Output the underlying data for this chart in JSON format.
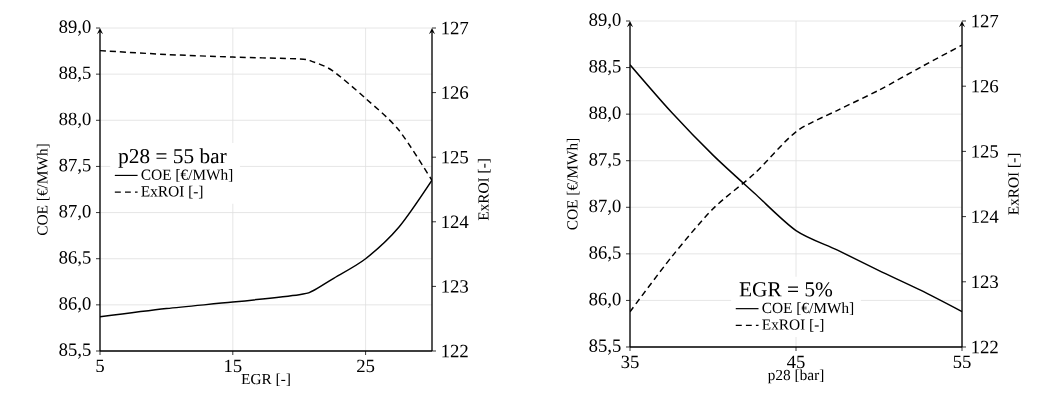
{
  "chart_data": [
    {
      "type": "line",
      "xlabel": "EGR [-]",
      "ylabel": "COE [€/MWh]",
      "y2label": "ExROI [-]",
      "legend_title": "p28 = 55 bar",
      "legend": "left",
      "grid": true,
      "marker": "none",
      "x": [
        5,
        10,
        15,
        20,
        21,
        22.5,
        25,
        27.5,
        30
      ],
      "xlim": [
        5,
        30
      ],
      "xticks": [
        5,
        15,
        25
      ],
      "ylim": [
        85.5,
        89
      ],
      "yticks": [
        {
          "value": 85.5,
          "label": "85,5"
        },
        {
          "value": 86,
          "label": "86,0"
        },
        {
          "value": 86.5,
          "label": "86,5"
        },
        {
          "value": 87,
          "label": "87,0"
        },
        {
          "value": 87.5,
          "label": "87,5"
        },
        {
          "value": 88,
          "label": "88,0"
        },
        {
          "value": 88.5,
          "label": "88,5"
        },
        {
          "value": 89,
          "label": "89,0"
        }
      ],
      "y2lim": [
        122,
        127
      ],
      "y2ticks": [
        122,
        123,
        124,
        125,
        126,
        127
      ],
      "series": [
        {
          "name": "COE [€/MWh]",
          "color": "#000000",
          "line_style": "solid",
          "values": [
            85.87,
            85.96,
            86.03,
            86.11,
            86.15,
            86.28,
            86.5,
            86.84,
            87.35
          ]
        },
        {
          "name": "ExROI [-]",
          "color": "#000000",
          "line_style": "dashed",
          "axis": "y2",
          "values": [
            126.65,
            126.59,
            126.55,
            126.52,
            126.48,
            126.34,
            125.91,
            125.42,
            124.64
          ]
        }
      ]
    },
    {
      "type": "line",
      "xlabel": "p28 [bar]",
      "ylabel": "COE [€/MWh]",
      "y2label": "ExROI [-]",
      "legend_title": "EGR = 5%",
      "legend": "bottom",
      "grid": true,
      "marker": "none",
      "x": [
        35,
        37.5,
        40,
        42.5,
        45,
        47.5,
        50,
        52.5,
        55
      ],
      "xlim": [
        35,
        55
      ],
      "xticks": [
        35,
        45,
        55
      ],
      "ylim": [
        85.5,
        89
      ],
      "yticks": [
        {
          "value": 85.5,
          "label": "85,5"
        },
        {
          "value": 86,
          "label": "86,0"
        },
        {
          "value": 86.5,
          "label": "86,5"
        },
        {
          "value": 87,
          "label": "87,0"
        },
        {
          "value": 87.5,
          "label": "87,5"
        },
        {
          "value": 88,
          "label": "88,0"
        },
        {
          "value": 88.5,
          "label": "88,5"
        },
        {
          "value": 89,
          "label": "89,0"
        }
      ],
      "y2lim": [
        122,
        127
      ],
      "y2ticks": [
        122,
        123,
        124,
        125,
        126,
        127
      ],
      "series": [
        {
          "name": "COE [€/MWh]",
          "color": "#000000",
          "line_style": "solid",
          "values": [
            88.53,
            88.02,
            87.56,
            87.15,
            86.75,
            86.54,
            86.32,
            86.11,
            85.88
          ]
        },
        {
          "name": "ExROI [-]",
          "color": "#000000",
          "line_style": "dashed",
          "axis": "y2",
          "values": [
            122.54,
            123.38,
            124.12,
            124.66,
            125.3,
            125.63,
            125.94,
            126.29,
            126.63
          ]
        }
      ]
    }
  ]
}
